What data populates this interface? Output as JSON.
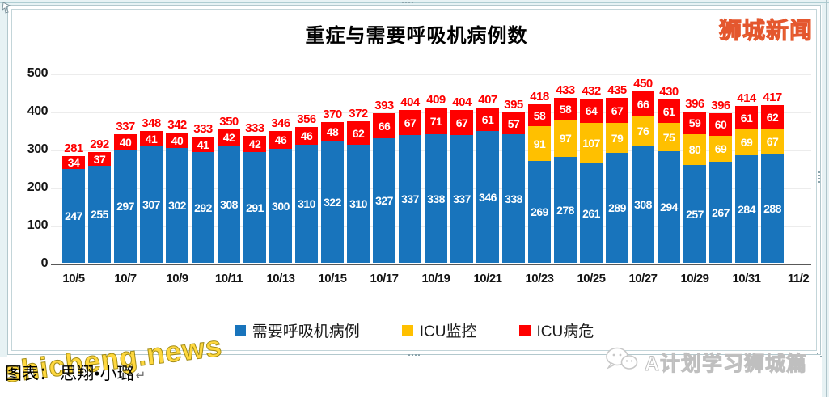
{
  "page": {
    "footer_caption": "图表： 思翔•小璐",
    "paragraph_mark": "↵",
    "watermark_top_right": "狮城新闻",
    "watermark_bottom_left": "shicheng.news",
    "watermark_bottom_right": "A计划学习狮城篇"
  },
  "chart_data": {
    "type": "bar",
    "stacked": true,
    "title": "重症与需要呼吸机病例数",
    "x_tick_labels": [
      "10/5",
      "10/7",
      "10/9",
      "10/11",
      "10/13",
      "10/15",
      "10/17",
      "10/19",
      "10/21",
      "10/23",
      "10/25",
      "10/27",
      "10/29",
      "10/31",
      "11/2"
    ],
    "y_ticks": [
      0,
      100,
      200,
      300,
      400,
      500
    ],
    "ylim": [
      0,
      500
    ],
    "grid": true,
    "legend_position": "bottom",
    "series": [
      {
        "name": "需要呼吸机病例",
        "color": "#1874BC",
        "values": [
          247,
          255,
          297,
          307,
          302,
          292,
          308,
          291,
          300,
          310,
          322,
          310,
          327,
          337,
          338,
          337,
          346,
          338,
          269,
          278,
          261,
          289,
          308,
          294,
          257,
          267,
          284,
          288
        ]
      },
      {
        "name": "ICU监控",
        "color": "#FFC000",
        "values": [
          0,
          0,
          0,
          0,
          0,
          0,
          0,
          0,
          0,
          0,
          0,
          0,
          0,
          0,
          0,
          0,
          0,
          0,
          91,
          97,
          107,
          79,
          76,
          75,
          80,
          69,
          69,
          67
        ]
      },
      {
        "name": "ICU病危",
        "color": "#FF0000",
        "values": [
          34,
          37,
          40,
          41,
          40,
          41,
          42,
          42,
          46,
          46,
          48,
          62,
          66,
          67,
          71,
          67,
          61,
          57,
          58,
          58,
          64,
          67,
          66,
          61,
          59,
          60,
          61,
          62
        ]
      }
    ],
    "totals": [
      281,
      292,
      337,
      348,
      342,
      333,
      350,
      333,
      346,
      356,
      370,
      372,
      393,
      404,
      409,
      404,
      407,
      395,
      418,
      433,
      432,
      435,
      450,
      430,
      396,
      396,
      414,
      417
    ],
    "total_label_color": "#FF0000",
    "bar_label_color": "#FFFFFF"
  }
}
